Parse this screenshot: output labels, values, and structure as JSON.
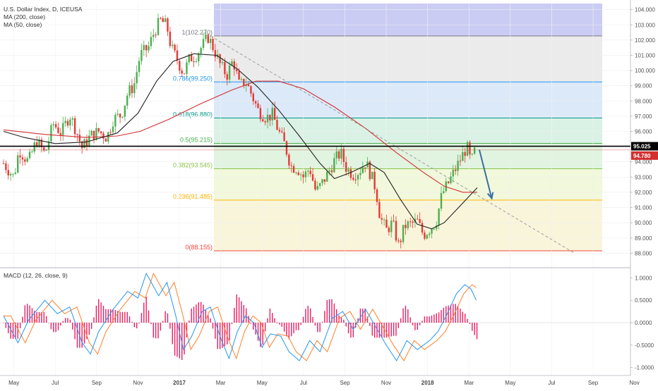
{
  "header": {
    "line1": "U.S. Dollar Index, D, ICEUSA",
    "line2": "MA (200, close)",
    "line3": "MA (50, close)"
  },
  "macd_header": "MACD (12, 26, close, 9)",
  "colors": {
    "bull": "#4caf50",
    "bear": "#e53935",
    "ma200": "#d32f2f",
    "ma50": "#222222",
    "macd": "#2196f3",
    "signal": "#ff7f27",
    "hist": "#e91e63",
    "arrow": "#3a6ea5"
  },
  "chart_data": {
    "type": "line",
    "x_ticks": [
      "May",
      "Jul",
      "Sep",
      "Nov",
      "2017",
      "Mar",
      "May",
      "Jul",
      "Sep",
      "Nov",
      "2018",
      "Mar",
      "May",
      "Jul",
      "Sep",
      "Nov"
    ],
    "price_axis": {
      "ticks": [
        "104.000",
        "103.000",
        "102.000",
        "101.000",
        "100.000",
        "99.000",
        "98.000",
        "97.000",
        "96.000",
        "95.000",
        "94.000",
        "93.000",
        "92.000",
        "91.000",
        "90.000",
        "89.000",
        "88.000"
      ],
      "ylim": [
        87.6,
        104.4
      ]
    },
    "price_labels": {
      "last": "95.025",
      "ma_tag": "94.780"
    },
    "fib_levels": [
      {
        "label": "1(102.270)",
        "value": 102.27
      },
      {
        "label": "0.786(99.250)",
        "value": 99.25
      },
      {
        "label": "0.618(96.880)",
        "value": 96.88
      },
      {
        "label": "0.5(95.215)",
        "value": 95.215
      },
      {
        "label": "0.382(93.545)",
        "value": 93.545
      },
      {
        "label": "0.236(91.485)",
        "value": 91.485
      },
      {
        "label": "0(88.155)",
        "value": 88.155
      }
    ],
    "price_series": [
      {
        "m": 0,
        "v": 93.9
      },
      {
        "m": 0.5,
        "v": 93.0
      },
      {
        "m": 0.75,
        "v": 94.8
      },
      {
        "m": 1.2,
        "v": 94.0
      },
      {
        "m": 1.6,
        "v": 95.4
      },
      {
        "m": 2.0,
        "v": 94.5
      },
      {
        "m": 2.4,
        "v": 96.5
      },
      {
        "m": 2.8,
        "v": 95.9
      },
      {
        "m": 3.2,
        "v": 97.1
      },
      {
        "m": 3.5,
        "v": 96.1
      },
      {
        "m": 3.8,
        "v": 94.9
      },
      {
        "m": 4.2,
        "v": 95.7
      },
      {
        "m": 4.6,
        "v": 96.0
      },
      {
        "m": 5.0,
        "v": 95.6
      },
      {
        "m": 5.3,
        "v": 96.8
      },
      {
        "m": 5.7,
        "v": 97.1
      },
      {
        "m": 6.0,
        "v": 98.5
      },
      {
        "m": 6.3,
        "v": 99.0
      },
      {
        "m": 6.6,
        "v": 101.0
      },
      {
        "m": 7.0,
        "v": 101.5
      },
      {
        "m": 7.3,
        "v": 102.6
      },
      {
        "m": 7.6,
        "v": 103.3
      },
      {
        "m": 7.9,
        "v": 102.9
      },
      {
        "m": 8.1,
        "v": 101.5
      },
      {
        "m": 8.4,
        "v": 100.7
      },
      {
        "m": 8.7,
        "v": 99.8
      },
      {
        "m": 9.0,
        "v": 100.8
      },
      {
        "m": 9.3,
        "v": 101.0
      },
      {
        "m": 9.6,
        "v": 101.6
      },
      {
        "m": 9.9,
        "v": 102.2
      },
      {
        "m": 10.2,
        "v": 101.3
      },
      {
        "m": 10.5,
        "v": 100.3
      },
      {
        "m": 10.8,
        "v": 99.7
      },
      {
        "m": 11.1,
        "v": 100.7
      },
      {
        "m": 11.4,
        "v": 99.0
      },
      {
        "m": 11.7,
        "v": 99.3
      },
      {
        "m": 12.0,
        "v": 98.4
      },
      {
        "m": 12.3,
        "v": 97.4
      },
      {
        "m": 12.7,
        "v": 96.9
      },
      {
        "m": 13.0,
        "v": 97.1
      },
      {
        "m": 13.3,
        "v": 96.0
      },
      {
        "m": 13.6,
        "v": 95.1
      },
      {
        "m": 13.9,
        "v": 93.7
      },
      {
        "m": 14.2,
        "v": 93.6
      },
      {
        "m": 14.5,
        "v": 93.0
      },
      {
        "m": 14.8,
        "v": 93.6
      },
      {
        "m": 15.1,
        "v": 92.0
      },
      {
        "m": 15.4,
        "v": 92.6
      },
      {
        "m": 15.7,
        "v": 93.3
      },
      {
        "m": 16.0,
        "v": 94.1
      },
      {
        "m": 16.3,
        "v": 94.6
      },
      {
        "m": 16.6,
        "v": 93.5
      },
      {
        "m": 16.9,
        "v": 93.2
      },
      {
        "m": 17.2,
        "v": 93.4
      },
      {
        "m": 17.5,
        "v": 94.0
      },
      {
        "m": 17.8,
        "v": 93.0
      },
      {
        "m": 18.0,
        "v": 92.2
      },
      {
        "m": 18.2,
        "v": 90.4
      },
      {
        "m": 18.5,
        "v": 89.5
      },
      {
        "m": 18.8,
        "v": 90.0
      },
      {
        "m": 19.1,
        "v": 88.5
      },
      {
        "m": 19.4,
        "v": 89.8
      },
      {
        "m": 19.7,
        "v": 89.9
      },
      {
        "m": 20.0,
        "v": 90.1
      },
      {
        "m": 20.3,
        "v": 89.2
      },
      {
        "m": 20.6,
        "v": 89.6
      },
      {
        "m": 20.9,
        "v": 90.0
      },
      {
        "m": 21.2,
        "v": 91.9
      },
      {
        "m": 21.5,
        "v": 92.6
      },
      {
        "m": 21.8,
        "v": 93.4
      },
      {
        "m": 22.1,
        "v": 94.2
      },
      {
        "m": 22.4,
        "v": 95.0
      },
      {
        "m": 22.6,
        "v": 93.9
      },
      {
        "m": 22.8,
        "v": 94.8
      }
    ],
    "ma200_series": [
      {
        "m": 0,
        "v": 96.1
      },
      {
        "m": 2,
        "v": 95.8
      },
      {
        "m": 4,
        "v": 95.6
      },
      {
        "m": 5.5,
        "v": 95.7
      },
      {
        "m": 6.6,
        "v": 96.0
      },
      {
        "m": 8,
        "v": 96.8
      },
      {
        "m": 9.5,
        "v": 97.8
      },
      {
        "m": 11,
        "v": 98.7
      },
      {
        "m": 12.2,
        "v": 99.3
      },
      {
        "m": 13.3,
        "v": 99.3
      },
      {
        "m": 14.5,
        "v": 98.8
      },
      {
        "m": 16,
        "v": 97.6
      },
      {
        "m": 17.5,
        "v": 96.2
      },
      {
        "m": 19,
        "v": 94.6
      },
      {
        "m": 20.3,
        "v": 93.3
      },
      {
        "m": 21.3,
        "v": 92.4
      },
      {
        "m": 22.2,
        "v": 92.0
      },
      {
        "m": 22.9,
        "v": 92.0
      }
    ],
    "ma50_series": [
      {
        "m": 0,
        "v": 96.0
      },
      {
        "m": 1,
        "v": 95.6
      },
      {
        "m": 2.5,
        "v": 95.2
      },
      {
        "m": 4,
        "v": 95.3
      },
      {
        "m": 5.5,
        "v": 95.9
      },
      {
        "m": 6.5,
        "v": 97.2
      },
      {
        "m": 7.4,
        "v": 99.3
      },
      {
        "m": 8.2,
        "v": 100.6
      },
      {
        "m": 9.2,
        "v": 101.1
      },
      {
        "m": 10.3,
        "v": 101.0
      },
      {
        "m": 11.3,
        "v": 100.1
      },
      {
        "m": 12.3,
        "v": 98.9
      },
      {
        "m": 13.3,
        "v": 97.4
      },
      {
        "m": 14.3,
        "v": 95.7
      },
      {
        "m": 15.3,
        "v": 93.9
      },
      {
        "m": 16.0,
        "v": 92.9
      },
      {
        "m": 16.8,
        "v": 93.3
      },
      {
        "m": 17.7,
        "v": 93.9
      },
      {
        "m": 18.4,
        "v": 93.3
      },
      {
        "m": 19.2,
        "v": 91.5
      },
      {
        "m": 20.0,
        "v": 89.9
      },
      {
        "m": 20.7,
        "v": 89.6
      },
      {
        "m": 21.3,
        "v": 90.0
      },
      {
        "m": 22.0,
        "v": 91.0
      },
      {
        "m": 22.9,
        "v": 92.3
      }
    ],
    "trendline": {
      "from": {
        "m": 10.0,
        "v": 102.27
      },
      "to": {
        "m": 27.6,
        "v": 88.0
      }
    },
    "forecast_arrow": {
      "from": {
        "m": 23.0,
        "v": 94.8
      },
      "to": {
        "m": 23.6,
        "v": 91.6
      }
    },
    "macd_axis": {
      "ticks": [
        "1.0000",
        "0.5000",
        "0.0000",
        "-0.5000",
        "-1.0000"
      ],
      "ylim": [
        -1.18,
        1.18
      ]
    },
    "macd_series": [
      {
        "m": 0,
        "v": 0.15
      },
      {
        "m": 0.7,
        "v": -0.45
      },
      {
        "m": 1.2,
        "v": 0.05
      },
      {
        "m": 2.0,
        "v": 0.5
      },
      {
        "m": 2.6,
        "v": 0.2
      },
      {
        "m": 3.2,
        "v": 0.35
      },
      {
        "m": 3.8,
        "v": -0.45
      },
      {
        "m": 4.2,
        "v": -0.7
      },
      {
        "m": 4.6,
        "v": -0.2
      },
      {
        "m": 5.3,
        "v": 0.3
      },
      {
        "m": 6.0,
        "v": 0.7
      },
      {
        "m": 6.5,
        "v": 0.55
      },
      {
        "m": 6.9,
        "v": 1.1
      },
      {
        "m": 7.5,
        "v": 0.6
      },
      {
        "m": 7.9,
        "v": 0.9
      },
      {
        "m": 8.3,
        "v": 0.2
      },
      {
        "m": 8.7,
        "v": -0.6
      },
      {
        "m": 9.1,
        "v": -0.3
      },
      {
        "m": 9.6,
        "v": 0.25
      },
      {
        "m": 10.0,
        "v": 0.35
      },
      {
        "m": 10.5,
        "v": -0.35
      },
      {
        "m": 10.9,
        "v": -0.8
      },
      {
        "m": 11.3,
        "v": -0.2
      },
      {
        "m": 11.7,
        "v": 0.15
      },
      {
        "m": 12.1,
        "v": 0.0
      },
      {
        "m": 12.5,
        "v": -0.55
      },
      {
        "m": 12.9,
        "v": -0.25
      },
      {
        "m": 13.4,
        "v": -0.3
      },
      {
        "m": 13.8,
        "v": -0.65
      },
      {
        "m": 14.3,
        "v": -0.85
      },
      {
        "m": 14.8,
        "v": -0.4
      },
      {
        "m": 15.3,
        "v": -0.65
      },
      {
        "m": 15.9,
        "v": 0.1
      },
      {
        "m": 16.4,
        "v": 0.25
      },
      {
        "m": 16.9,
        "v": -0.15
      },
      {
        "m": 17.5,
        "v": 0.3
      },
      {
        "m": 18.0,
        "v": -0.1
      },
      {
        "m": 18.5,
        "v": -0.5
      },
      {
        "m": 19.0,
        "v": -0.85
      },
      {
        "m": 19.5,
        "v": -0.4
      },
      {
        "m": 20.0,
        "v": -0.6
      },
      {
        "m": 20.6,
        "v": -0.4
      },
      {
        "m": 21.0,
        "v": -0.2
      },
      {
        "m": 21.4,
        "v": 0.15
      },
      {
        "m": 21.9,
        "v": 0.65
      },
      {
        "m": 22.3,
        "v": 0.85
      },
      {
        "m": 22.6,
        "v": 0.75
      },
      {
        "m": 22.9,
        "v": 0.45
      }
    ]
  }
}
